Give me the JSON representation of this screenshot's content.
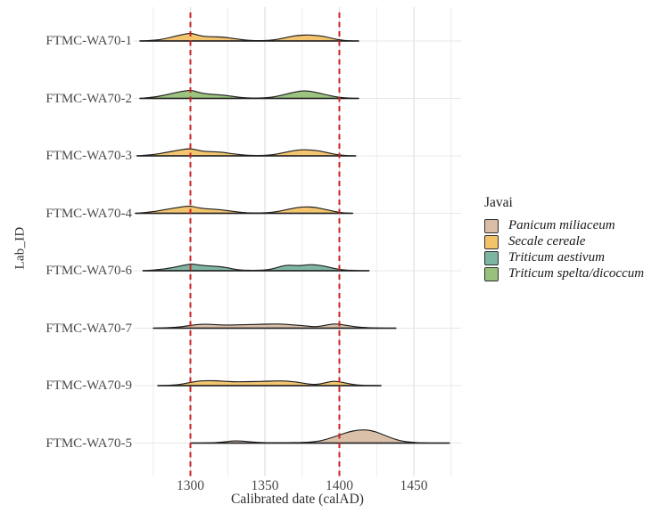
{
  "colors": {
    "reference_line": "#CE2222",
    "grid_major": "#E0E0E0",
    "grid_minor": "#ECECEC",
    "row_gridline": "#E7E7E7",
    "outline": "#1F1F1F",
    "background": "#FFFFFF",
    "axis_text": "#4A4A4A"
  },
  "legend": {
    "title": "Javai",
    "items": [
      {
        "label": "Panicum miliaceum",
        "color": "#D9BDA6"
      },
      {
        "label": "Secale cereale",
        "color": "#F3C36A"
      },
      {
        "label": "Triticum aestivum",
        "color": "#7CB5A1"
      },
      {
        "label": "Triticum spelta/dicoccum",
        "color": "#99C17B"
      }
    ]
  },
  "chart_data": {
    "type": "area",
    "subtype": "ridgeline-density",
    "x_axis": {
      "label": "Calibrated date (calAD)",
      "ticks": [
        1300,
        1350,
        1400,
        1450
      ],
      "gridline_years": [
        1275,
        1300,
        1325,
        1350,
        1375,
        1400,
        1425,
        1450,
        1475
      ],
      "range": [
        1262,
        1482
      ],
      "grid": true
    },
    "y_axis": {
      "label": "Lab_ID",
      "categories": [
        "FTMC-WA70-1",
        "FTMC-WA70-2",
        "FTMC-WA70-3",
        "FTMC-WA70-4",
        "FTMC-WA70-6",
        "FTMC-WA70-7",
        "FTMC-WA70-9",
        "FTMC-WA70-5"
      ]
    },
    "reference_lines": [
      1300,
      1400
    ],
    "legend_position": "right",
    "height_units": "relative density (estimated, arbitrary units)",
    "series": [
      {
        "lab_id": "FTMC-WA70-1",
        "taxon": "Secale cereale",
        "color": "#F3C36A",
        "points": [
          [
            1266,
            0
          ],
          [
            1276,
            0.8
          ],
          [
            1283,
            2.5
          ],
          [
            1290,
            5.5
          ],
          [
            1297,
            8
          ],
          [
            1301,
            8.8
          ],
          [
            1305,
            6.5
          ],
          [
            1310,
            5
          ],
          [
            1316,
            4.6
          ],
          [
            1322,
            4.4
          ],
          [
            1328,
            3
          ],
          [
            1334,
            1.6
          ],
          [
            1340,
            0.5
          ],
          [
            1347,
            0.3
          ],
          [
            1353,
            0.6
          ],
          [
            1359,
            2
          ],
          [
            1366,
            4.5
          ],
          [
            1372,
            6.3
          ],
          [
            1378,
            6.8
          ],
          [
            1384,
            6.4
          ],
          [
            1390,
            5
          ],
          [
            1395,
            3
          ],
          [
            1400,
            1.2
          ],
          [
            1406,
            0.3
          ],
          [
            1413,
            0
          ]
        ]
      },
      {
        "lab_id": "FTMC-WA70-2",
        "taxon": "Triticum spelta/dicoccum",
        "color": "#99C17B",
        "points": [
          [
            1266,
            0
          ],
          [
            1275,
            1.2
          ],
          [
            1283,
            3.8
          ],
          [
            1291,
            6.8
          ],
          [
            1298,
            9
          ],
          [
            1301,
            9.2
          ],
          [
            1305,
            7
          ],
          [
            1310,
            5.2
          ],
          [
            1316,
            4.4
          ],
          [
            1322,
            3.8
          ],
          [
            1328,
            2.4
          ],
          [
            1334,
            1
          ],
          [
            1341,
            0.4
          ],
          [
            1348,
            0.4
          ],
          [
            1355,
            1.4
          ],
          [
            1362,
            3.8
          ],
          [
            1369,
            6.8
          ],
          [
            1375,
            8.6
          ],
          [
            1380,
            8.2
          ],
          [
            1386,
            6.2
          ],
          [
            1392,
            3.8
          ],
          [
            1398,
            1.6
          ],
          [
            1405,
            0.4
          ],
          [
            1413,
            0
          ]
        ]
      },
      {
        "lab_id": "FTMC-WA70-3",
        "taxon": "Secale cereale",
        "color": "#F3C36A",
        "points": [
          [
            1264,
            0
          ],
          [
            1275,
            1.2
          ],
          [
            1283,
            3.6
          ],
          [
            1292,
            6.4
          ],
          [
            1299,
            8.2
          ],
          [
            1303,
            7.2
          ],
          [
            1308,
            5.2
          ],
          [
            1314,
            4.6
          ],
          [
            1321,
            4.2
          ],
          [
            1327,
            2.6
          ],
          [
            1334,
            1.2
          ],
          [
            1341,
            0.4
          ],
          [
            1349,
            0.4
          ],
          [
            1356,
            1.4
          ],
          [
            1363,
            3.8
          ],
          [
            1371,
            6.4
          ],
          [
            1377,
            7
          ],
          [
            1384,
            6.2
          ],
          [
            1390,
            4.4
          ],
          [
            1396,
            2
          ],
          [
            1403,
            0.5
          ],
          [
            1411,
            0
          ]
        ]
      },
      {
        "lab_id": "FTMC-WA70-4",
        "taxon": "Secale cereale",
        "color": "#F3C36A",
        "points": [
          [
            1263,
            0
          ],
          [
            1274,
            1.4
          ],
          [
            1283,
            4.2
          ],
          [
            1293,
            7
          ],
          [
            1300,
            8.4
          ],
          [
            1304,
            6.6
          ],
          [
            1310,
            5
          ],
          [
            1317,
            4.6
          ],
          [
            1324,
            3.2
          ],
          [
            1331,
            1.6
          ],
          [
            1338,
            0.5
          ],
          [
            1347,
            0.4
          ],
          [
            1355,
            1
          ],
          [
            1363,
            3.4
          ],
          [
            1371,
            6.4
          ],
          [
            1378,
            7.4
          ],
          [
            1384,
            6.6
          ],
          [
            1390,
            4.6
          ],
          [
            1396,
            2.2
          ],
          [
            1402,
            0.6
          ],
          [
            1409,
            0
          ]
        ]
      },
      {
        "lab_id": "FTMC-WA70-6",
        "taxon": "Triticum aestivum",
        "color": "#7CB5A1",
        "points": [
          [
            1268,
            0
          ],
          [
            1279,
            1.2
          ],
          [
            1287,
            3.2
          ],
          [
            1295,
            6
          ],
          [
            1301,
            7.8
          ],
          [
            1305,
            6.6
          ],
          [
            1311,
            5.6
          ],
          [
            1317,
            5
          ],
          [
            1323,
            4
          ],
          [
            1329,
            1.8
          ],
          [
            1335,
            0.6
          ],
          [
            1344,
            0.4
          ],
          [
            1352,
            1
          ],
          [
            1358,
            3.4
          ],
          [
            1364,
            6.4
          ],
          [
            1369,
            6
          ],
          [
            1374,
            5.6
          ],
          [
            1380,
            7
          ],
          [
            1386,
            6.4
          ],
          [
            1392,
            4.4
          ],
          [
            1398,
            2
          ],
          [
            1404,
            0.6
          ],
          [
            1412,
            0.3
          ],
          [
            1420,
            0
          ]
        ]
      },
      {
        "lab_id": "FTMC-WA70-7",
        "taxon": "Panicum miliaceum",
        "color": "#D9BDA6",
        "points": [
          [
            1275,
            0
          ],
          [
            1286,
            0.4
          ],
          [
            1294,
            1.6
          ],
          [
            1301,
            3.4
          ],
          [
            1307,
            4.4
          ],
          [
            1313,
            4.4
          ],
          [
            1319,
            3.8
          ],
          [
            1326,
            3.5
          ],
          [
            1333,
            3.9
          ],
          [
            1340,
            4
          ],
          [
            1347,
            4.4
          ],
          [
            1354,
            4.6
          ],
          [
            1360,
            4.8
          ],
          [
            1366,
            4
          ],
          [
            1372,
            3.4
          ],
          [
            1378,
            2.4
          ],
          [
            1383,
            1.6
          ],
          [
            1389,
            2.6
          ],
          [
            1394,
            4.6
          ],
          [
            1399,
            4.8
          ],
          [
            1404,
            3.4
          ],
          [
            1409,
            2
          ],
          [
            1415,
            0.8
          ],
          [
            1424,
            0.3
          ],
          [
            1438,
            0
          ]
        ]
      },
      {
        "lab_id": "FTMC-WA70-9",
        "taxon": "Secale cereale",
        "color": "#F3C36A",
        "points": [
          [
            1278,
            0
          ],
          [
            1288,
            0.5
          ],
          [
            1295,
            1.8
          ],
          [
            1301,
            4
          ],
          [
            1306,
            5.2
          ],
          [
            1312,
            5.6
          ],
          [
            1318,
            5.4
          ],
          [
            1324,
            4.8
          ],
          [
            1330,
            4.2
          ],
          [
            1337,
            4.4
          ],
          [
            1344,
            4.6
          ],
          [
            1350,
            4.8
          ],
          [
            1356,
            5.2
          ],
          [
            1362,
            5.4
          ],
          [
            1367,
            4.8
          ],
          [
            1372,
            3.8
          ],
          [
            1377,
            2.4
          ],
          [
            1382,
            1.2
          ],
          [
            1387,
            1.8
          ],
          [
            1392,
            3.8
          ],
          [
            1396,
            5
          ],
          [
            1400,
            4.4
          ],
          [
            1404,
            3
          ],
          [
            1408,
            1.6
          ],
          [
            1413,
            0.5
          ],
          [
            1428,
            0
          ]
        ]
      },
      {
        "lab_id": "FTMC-WA70-5",
        "taxon": "Panicum miliaceum",
        "color": "#D9BDA6",
        "points": [
          [
            1300,
            0
          ],
          [
            1313,
            0.2
          ],
          [
            1321,
            0.9
          ],
          [
            1327,
            2.2
          ],
          [
            1333,
            2.5
          ],
          [
            1339,
            1.6
          ],
          [
            1345,
            0.8
          ],
          [
            1353,
            0.4
          ],
          [
            1364,
            0.4
          ],
          [
            1376,
            0.7
          ],
          [
            1385,
            1.8
          ],
          [
            1392,
            4.5
          ],
          [
            1399,
            8.5
          ],
          [
            1406,
            12.5
          ],
          [
            1412,
            14.5
          ],
          [
            1418,
            15
          ],
          [
            1424,
            13
          ],
          [
            1430,
            9
          ],
          [
            1436,
            5
          ],
          [
            1442,
            2.2
          ],
          [
            1448,
            0.9
          ],
          [
            1456,
            0.3
          ],
          [
            1474,
            0
          ]
        ]
      }
    ]
  }
}
